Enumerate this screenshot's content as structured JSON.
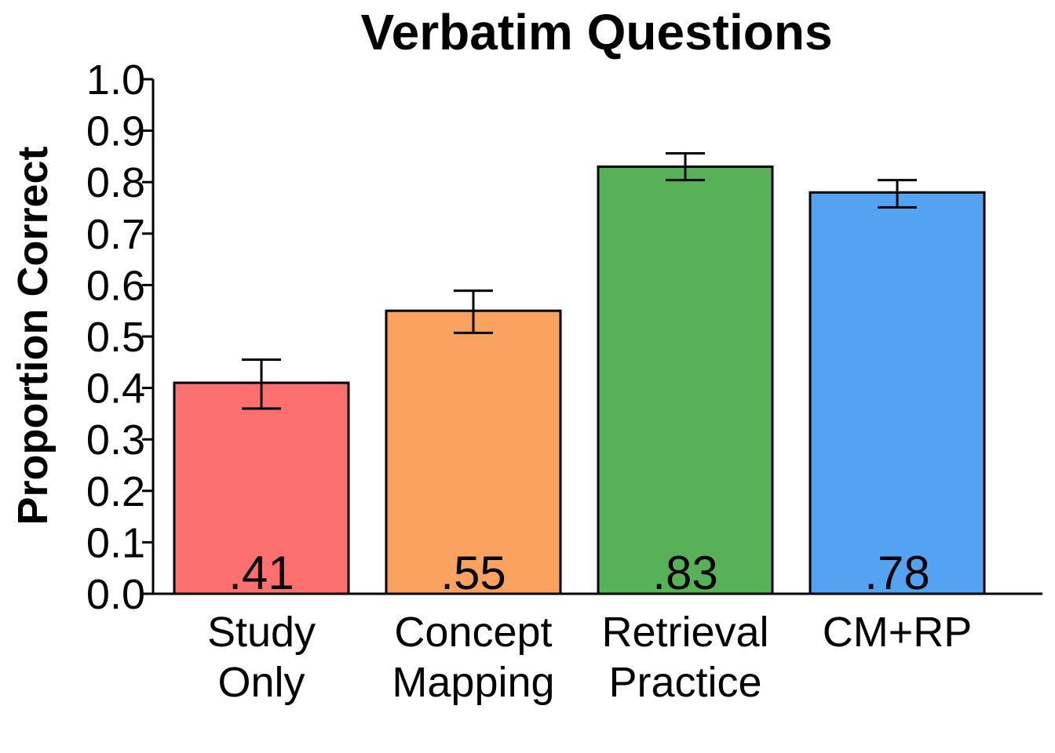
{
  "chart_data": {
    "type": "bar",
    "title": "Verbatim Questions",
    "xlabel": "",
    "ylabel": "Proportion Correct",
    "ylim": [
      0,
      1.0
    ],
    "yticks": [
      "0.0",
      "0.1",
      "0.2",
      "0.3",
      "0.4",
      "0.5",
      "0.6",
      "0.7",
      "0.8",
      "0.9",
      "1.0"
    ],
    "categories": [
      [
        "Study",
        "Only"
      ],
      [
        "Concept",
        "Mapping"
      ],
      [
        "Retrieval",
        "Practice"
      ],
      [
        "CM+RP"
      ]
    ],
    "values": [
      0.41,
      0.55,
      0.83,
      0.78
    ],
    "data_labels": [
      ".41",
      ".55",
      ".83",
      ".78"
    ],
    "error_bars": [
      [
        0.36,
        0.455
      ],
      [
        0.507,
        0.589
      ],
      [
        0.804,
        0.856
      ],
      [
        0.751,
        0.804
      ]
    ],
    "colors": [
      "#FC7070",
      "#FCA261",
      "#57B257",
      "#54A3F2"
    ]
  }
}
